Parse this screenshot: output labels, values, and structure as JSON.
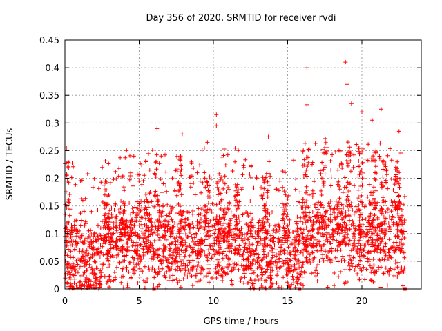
{
  "chart_data": {
    "type": "scatter",
    "title": "Day 356 of 2020, SRMTID for receiver rvdi",
    "xlabel": "GPS time / hours",
    "ylabel": "SRMTID / TECUs",
    "xlim": [
      0,
      24
    ],
    "ylim": [
      0,
      0.45
    ],
    "xticks": [
      "0",
      "5",
      "10",
      "15",
      "20"
    ],
    "yticks": [
      "0",
      "0.05",
      "0.1",
      "0.15",
      "0.2",
      "0.25",
      "0.3",
      "0.35",
      "0.4",
      "0.45"
    ],
    "grid": true,
    "marker": "+",
    "color": "#ff0000",
    "notable_points": [
      {
        "x": 0.1,
        "y": 0.255
      },
      {
        "x": 6.2,
        "y": 0.29
      },
      {
        "x": 7.9,
        "y": 0.28
      },
      {
        "x": 9.6,
        "y": 0.265
      },
      {
        "x": 10.2,
        "y": 0.315
      },
      {
        "x": 10.2,
        "y": 0.295
      },
      {
        "x": 13.7,
        "y": 0.275
      },
      {
        "x": 16.3,
        "y": 0.4
      },
      {
        "x": 16.3,
        "y": 0.333
      },
      {
        "x": 18.9,
        "y": 0.41
      },
      {
        "x": 19.0,
        "y": 0.37
      },
      {
        "x": 19.3,
        "y": 0.335
      },
      {
        "x": 20.0,
        "y": 0.32
      },
      {
        "x": 21.3,
        "y": 0.325
      },
      {
        "x": 20.7,
        "y": 0.305
      },
      {
        "x": 22.5,
        "y": 0.285
      }
    ]
  }
}
